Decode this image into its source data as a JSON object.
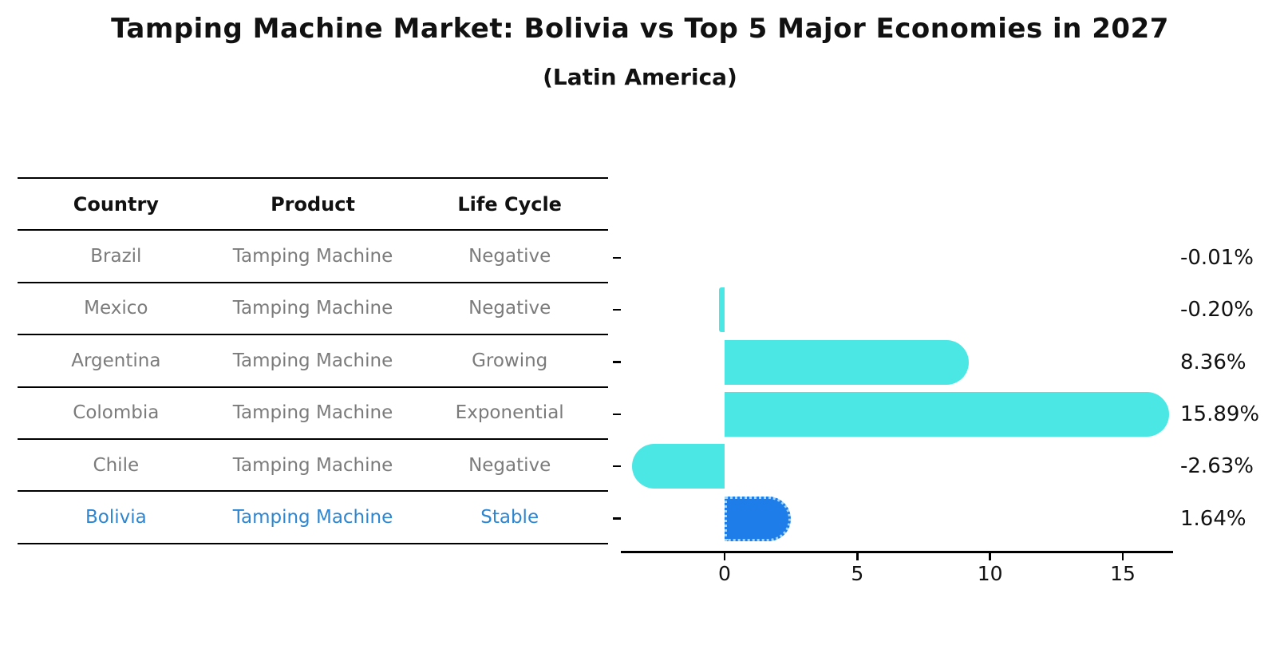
{
  "title": "Tamping Machine Market: Bolivia vs Top 5 Major Economies in 2027",
  "subtitle": "(Latin America)",
  "table": {
    "headers": {
      "country": "Country",
      "product": "Product",
      "life_cycle": "Life Cycle"
    },
    "rows": [
      {
        "country": "Brazil",
        "product": "Tamping Machine",
        "life_cycle": "Negative"
      },
      {
        "country": "Mexico",
        "product": "Tamping Machine",
        "life_cycle": "Negative"
      },
      {
        "country": "Argentina",
        "product": "Tamping Machine",
        "life_cycle": "Growing"
      },
      {
        "country": "Colombia",
        "product": "Tamping Machine",
        "life_cycle": "Exponential"
      },
      {
        "country": "Chile",
        "product": "Tamping Machine",
        "life_cycle": "Negative"
      },
      {
        "country": "Bolivia",
        "product": "Tamping Machine",
        "life_cycle": "Stable"
      }
    ],
    "highlight_row": "Bolivia",
    "highlight_text_color": "#2e86d1"
  },
  "chart_data": {
    "type": "bar",
    "orientation": "horizontal",
    "title": "Tamping Machine Market: Bolivia vs Top 5 Major Economies in 2027 (Latin America)",
    "categories": [
      "Brazil",
      "Mexico",
      "Argentina",
      "Colombia",
      "Chile",
      "Bolivia"
    ],
    "values": [
      -0.01,
      -0.2,
      8.36,
      15.89,
      -2.63,
      1.64
    ],
    "value_labels": [
      "-0.01%",
      "-0.20%",
      "8.36%",
      "15.89%",
      "-2.63%",
      "1.64%"
    ],
    "unit": "percent",
    "xticks": [
      "0",
      "5",
      "10",
      "15"
    ],
    "xtick_values": [
      0,
      5,
      10,
      15
    ],
    "xlim": [
      -3.9,
      16.9
    ],
    "grid": false,
    "legend": false,
    "bar_color": "#4ae7e4",
    "highlight_index": 5,
    "highlight_color": "#1e7de8",
    "highlight_edge_color": "#a6d4f5"
  }
}
